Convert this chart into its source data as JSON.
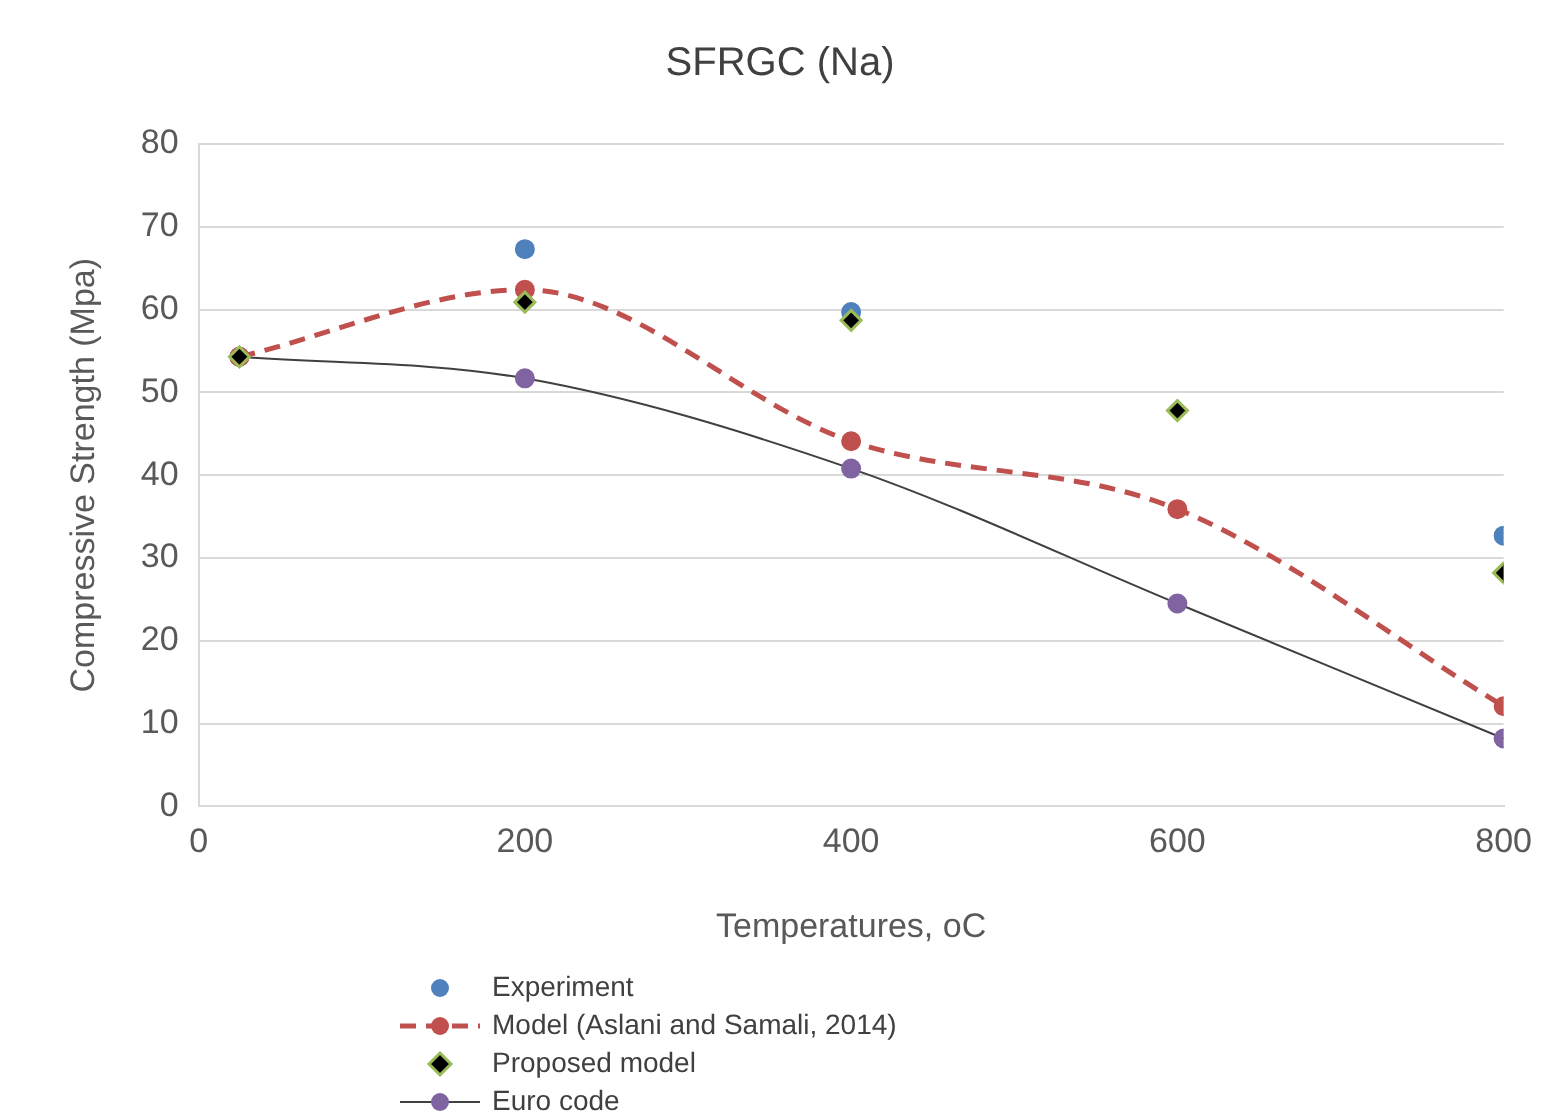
{
  "chart_data": {
    "type": "line",
    "title": "SFRGC (Na)",
    "xlabel": "Temperatures, oC",
    "ylabel": "Compressive Strength (Mpa)",
    "xlim": [
      0,
      800
    ],
    "xticks": [
      0,
      200,
      400,
      600,
      800
    ],
    "ylim": [
      0,
      80
    ],
    "yticks": [
      0,
      10,
      20,
      30,
      40,
      50,
      60,
      70,
      80
    ],
    "grid": "y",
    "legend": "bottom",
    "series": [
      {
        "name": "Experiment",
        "type": "scatter",
        "marker": "circle",
        "color": "#4f81bd",
        "x": [
          200,
          400,
          800
        ],
        "values": [
          67.3,
          59.7,
          32.7
        ]
      },
      {
        "name": "Model (Aslani and Samali, 2014)",
        "type": "line",
        "marker": "circle",
        "line_style": "dashed",
        "color": "#c0504d",
        "x": [
          25,
          200,
          400,
          600,
          800
        ],
        "values": [
          54.3,
          62.4,
          44.1,
          35.9,
          12.1
        ]
      },
      {
        "name": "Proposed model",
        "type": "scatter",
        "marker": "diamond",
        "color": "#000000",
        "x": [
          25,
          200,
          400,
          600,
          800
        ],
        "values": [
          54.3,
          60.9,
          58.7,
          47.8,
          28.2
        ]
      },
      {
        "name": "Euro code",
        "type": "line",
        "marker": "circle",
        "line_style": "solid",
        "color": "#8064a2",
        "x": [
          25,
          200,
          400,
          600,
          800
        ],
        "values": [
          54.3,
          51.7,
          40.8,
          24.5,
          8.2
        ]
      }
    ]
  }
}
